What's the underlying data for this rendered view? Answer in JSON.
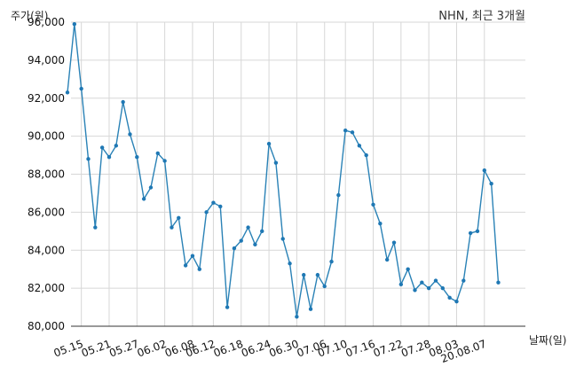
{
  "chart_data": {
    "type": "line",
    "title": "NHN, 최근 3개월",
    "ylabel": "주가(원)",
    "xlabel": "날짜(일)",
    "ylim": [
      80000,
      96000
    ],
    "y_ticks": [
      "80,000",
      "82,000",
      "84,000",
      "86,000",
      "88,000",
      "90,000",
      "92,000",
      "94,000",
      "96,000"
    ],
    "x_ticks": [
      "05.15",
      "05.21",
      "05.27",
      "06.02",
      "06.08",
      "06.12",
      "06.18",
      "06.24",
      "06.30",
      "07.06",
      "07.10",
      "07.16",
      "07.22",
      "07.28",
      "08.03",
      "20.08.07"
    ],
    "grid": true,
    "series": [
      {
        "values": [
          92300,
          95900,
          92500,
          88800,
          85200,
          89400,
          88900,
          89500,
          91800,
          90100,
          88900,
          86700,
          87300,
          89100,
          88700,
          85200,
          85700,
          83200,
          83700,
          83000,
          86000,
          86500,
          86300,
          81000,
          84100,
          84500,
          85200,
          84300,
          85000,
          89600,
          88600,
          84600,
          83300,
          80500,
          82700,
          80900,
          82700,
          82100,
          83400,
          86900,
          90300,
          90200,
          89500,
          89000,
          86400,
          85400,
          83500,
          84400,
          82200,
          83000,
          81900,
          82300,
          82000,
          82400,
          82000,
          81500,
          81300,
          82400,
          84900,
          85000,
          88200,
          87500,
          82300
        ]
      }
    ]
  }
}
